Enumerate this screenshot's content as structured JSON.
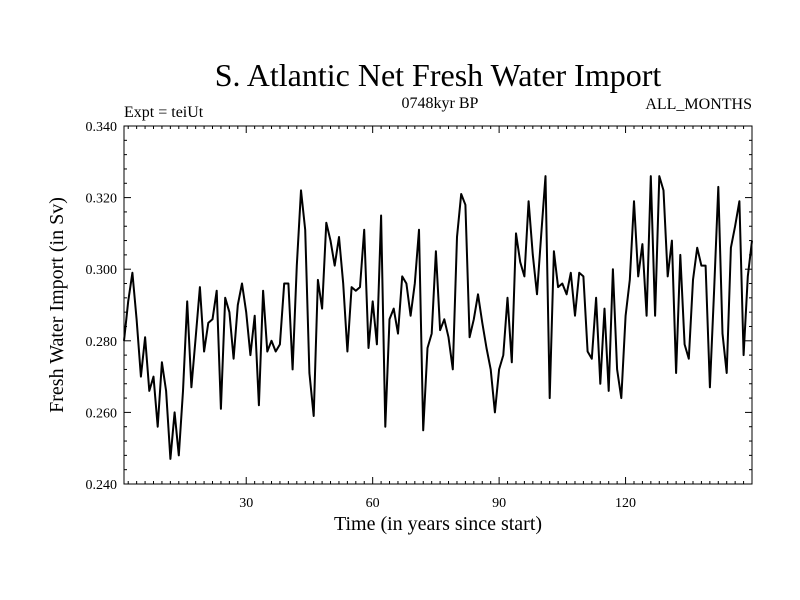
{
  "chart_data": {
    "type": "line",
    "title": "S. Atlantic Net Fresh Water Import",
    "subtitle_left": "Expt = teiUt",
    "subtitle_center": "0748kyr BP",
    "subtitle_right": "ALL_MONTHS",
    "xlabel": "Time (in years since start)",
    "ylabel": "Fresh Water Import (in Sv)",
    "xlim": [
      1,
      150
    ],
    "ylim": [
      0.24,
      0.34
    ],
    "xticks": [
      30,
      60,
      90,
      120
    ],
    "xtick_labels": [
      "30",
      "60",
      "90",
      "120"
    ],
    "yticks": [
      0.24,
      0.26,
      0.28,
      0.3,
      0.32,
      0.34
    ],
    "ytick_labels": [
      "0.240",
      "0.260",
      "0.280",
      "0.300",
      "0.320",
      "0.340"
    ],
    "grid": false,
    "series": [
      {
        "name": "Net Fresh Water Import",
        "x": [
          1,
          2,
          3,
          4,
          5,
          6,
          7,
          8,
          9,
          10,
          11,
          12,
          13,
          14,
          15,
          16,
          17,
          18,
          19,
          20,
          21,
          22,
          23,
          24,
          25,
          26,
          27,
          28,
          29,
          30,
          31,
          32,
          33,
          34,
          35,
          36,
          37,
          38,
          39,
          40,
          41,
          42,
          43,
          44,
          45,
          46,
          47,
          48,
          49,
          50,
          51,
          52,
          53,
          54,
          55,
          56,
          57,
          58,
          59,
          60,
          61,
          62,
          63,
          64,
          65,
          66,
          67,
          68,
          69,
          70,
          71,
          72,
          73,
          74,
          75,
          76,
          77,
          78,
          79,
          80,
          81,
          82,
          83,
          84,
          85,
          86,
          87,
          88,
          89,
          90,
          91,
          92,
          93,
          94,
          95,
          96,
          97,
          98,
          99,
          100,
          101,
          102,
          103,
          104,
          105,
          106,
          107,
          108,
          109,
          110,
          111,
          112,
          113,
          114,
          115,
          116,
          117,
          118,
          119,
          120,
          121,
          122,
          123,
          124,
          125,
          126,
          127,
          128,
          129,
          130,
          131,
          132,
          133,
          134,
          135,
          136,
          137,
          138,
          139,
          140,
          141,
          142,
          143,
          144,
          145,
          146,
          147,
          148,
          149,
          150
        ],
        "values": [
          0.28,
          0.291,
          0.299,
          0.286,
          0.27,
          0.281,
          0.266,
          0.27,
          0.256,
          0.274,
          0.266,
          0.247,
          0.26,
          0.248,
          0.266,
          0.291,
          0.267,
          0.281,
          0.295,
          0.277,
          0.285,
          0.286,
          0.294,
          0.261,
          0.292,
          0.288,
          0.275,
          0.29,
          0.296,
          0.288,
          0.276,
          0.287,
          0.262,
          0.294,
          0.277,
          0.28,
          0.277,
          0.279,
          0.296,
          0.296,
          0.272,
          0.301,
          0.322,
          0.311,
          0.271,
          0.259,
          0.297,
          0.289,
          0.313,
          0.308,
          0.301,
          0.309,
          0.296,
          0.277,
          0.295,
          0.294,
          0.295,
          0.311,
          0.278,
          0.291,
          0.279,
          0.315,
          0.256,
          0.286,
          0.289,
          0.282,
          0.298,
          0.296,
          0.287,
          0.296,
          0.311,
          0.255,
          0.278,
          0.282,
          0.305,
          0.283,
          0.286,
          0.281,
          0.272,
          0.309,
          0.321,
          0.318,
          0.281,
          0.286,
          0.293,
          0.285,
          0.278,
          0.272,
          0.26,
          0.272,
          0.276,
          0.292,
          0.274,
          0.31,
          0.302,
          0.298,
          0.319,
          0.304,
          0.293,
          0.31,
          0.326,
          0.264,
          0.305,
          0.295,
          0.296,
          0.293,
          0.299,
          0.287,
          0.299,
          0.298,
          0.277,
          0.275,
          0.292,
          0.268,
          0.289,
          0.266,
          0.3,
          0.272,
          0.264,
          0.287,
          0.297,
          0.319,
          0.298,
          0.307,
          0.287,
          0.326,
          0.287,
          0.326,
          0.322,
          0.298,
          0.308,
          0.271,
          0.304,
          0.279,
          0.275,
          0.297,
          0.306,
          0.301,
          0.301,
          0.267,
          0.294,
          0.323,
          0.282,
          0.271,
          0.306,
          0.312,
          0.319,
          0.276,
          0.298,
          0.308
        ]
      }
    ]
  }
}
